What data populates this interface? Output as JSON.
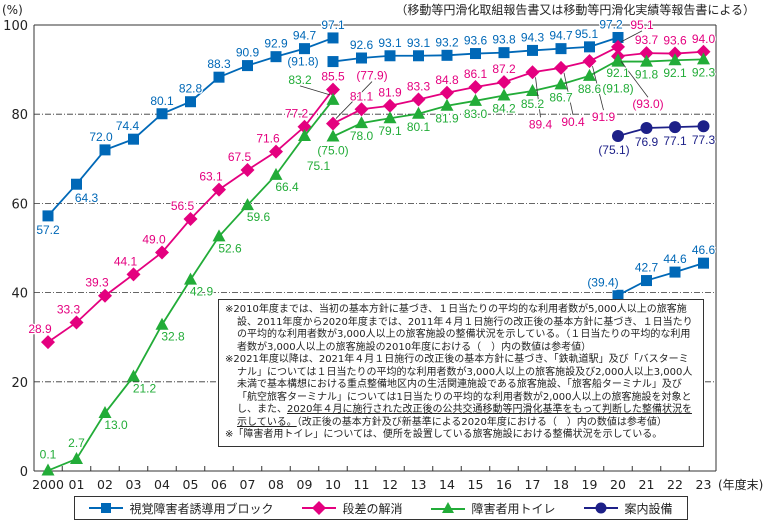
{
  "chart_data": {
    "type": "line",
    "title": "",
    "source_note": "（移動等円滑化取組報告書又は移動等円滑化実績等報告書による）",
    "ylabel": "(%)",
    "xlabel": "(年度末)",
    "ylim": [
      0,
      100
    ],
    "yticks": [
      "0",
      "20",
      "40",
      "60",
      "80",
      "100"
    ],
    "xticks": [
      "2000",
      "01",
      "02",
      "03",
      "04",
      "05",
      "06",
      "07",
      "08",
      "09",
      "10",
      "11",
      "12",
      "13",
      "14",
      "15",
      "16",
      "17",
      "18",
      "19",
      "20",
      "21",
      "22",
      "23"
    ],
    "grid": "dash-dot horizontal at 20, 40, 60, 80",
    "legend_position": "bottom",
    "series": [
      {
        "name": "視覚障害者誘導用ブロック",
        "color": "#0068b7",
        "marker": "square",
        "segments": [
          {
            "x": [
              0,
              1,
              2,
              3,
              4,
              5,
              6,
              7,
              8,
              9,
              10
            ],
            "values": [
              57.2,
              64.3,
              72.0,
              74.4,
              80.1,
              82.8,
              88.3,
              90.9,
              92.9,
              94.7,
              97.1
            ],
            "labels": [
              "57.2",
              "64.3",
              "72.0",
              "74.4",
              "80.1",
              "82.8",
              "88.3",
              "90.9",
              "92.9",
              "94.7",
              "97.1"
            ]
          },
          {
            "x": [
              10,
              11,
              12,
              13,
              14,
              15,
              16,
              17,
              18,
              19,
              20
            ],
            "values": [
              91.8,
              92.6,
              93.1,
              93.1,
              93.2,
              93.6,
              93.8,
              94.3,
              94.7,
              95.1,
              97.2
            ],
            "labels": [
              "(91.8)",
              "92.6",
              "93.1",
              "93.1",
              "93.2",
              "93.6",
              "93.8",
              "94.3",
              "94.7",
              "95.1",
              "97.2"
            ]
          },
          {
            "x": [
              20,
              21,
              22,
              23
            ],
            "values": [
              39.4,
              42.7,
              44.6,
              46.6
            ],
            "labels": [
              "(39.4)",
              "42.7",
              "44.6",
              "46.6"
            ]
          }
        ]
      },
      {
        "name": "段差の解消",
        "color": "#e4007f",
        "marker": "diamond",
        "segments": [
          {
            "x": [
              0,
              1,
              2,
              3,
              4,
              5,
              6,
              7,
              8,
              9,
              10
            ],
            "values": [
              28.9,
              33.3,
              39.3,
              44.1,
              49.0,
              56.5,
              63.1,
              67.5,
              71.6,
              77.2,
              85.5
            ],
            "labels": [
              "28.9",
              "33.3",
              "39.3",
              "44.1",
              "49.0",
              "56.5",
              "63.1",
              "67.5",
              "71.6",
              "77.2",
              "85.5"
            ]
          },
          {
            "x": [
              10,
              11,
              12,
              13,
              14,
              15,
              16,
              17,
              18,
              19,
              20
            ],
            "values": [
              77.9,
              81.1,
              81.9,
              83.3,
              84.8,
              86.1,
              87.2,
              89.4,
              90.4,
              91.9,
              95.1
            ],
            "labels": [
              "(77.9)",
              "81.1",
              "81.9",
              "83.3",
              "84.8",
              "86.1",
              "87.2",
              "89.4",
              "90.4",
              "91.9",
              "95.1"
            ]
          },
          {
            "x": [
              20,
              21,
              22,
              23
            ],
            "values": [
              93.0,
              93.7,
              93.6,
              94.0
            ],
            "labels": [
              "(93.0)",
              "93.7",
              "93.6",
              "94.0"
            ]
          }
        ]
      },
      {
        "name": "障害者用トイレ",
        "color": "#22ac38",
        "marker": "triangle",
        "segments": [
          {
            "x": [
              0,
              1,
              2,
              3,
              4,
              5,
              6,
              7,
              8,
              9,
              10
            ],
            "values": [
              0.1,
              2.7,
              13.0,
              21.2,
              32.8,
              42.9,
              52.6,
              59.6,
              66.4,
              75.1,
              83.2
            ],
            "labels": [
              "0.1",
              "2.7",
              "13.0",
              "21.2",
              "32.8",
              "42.9",
              "52.6",
              "59.6",
              "66.4",
              "75.1",
              "83.2"
            ]
          },
          {
            "x": [
              10,
              11,
              12,
              13,
              14,
              15,
              16,
              17,
              18,
              19,
              20
            ],
            "values": [
              75.0,
              78.0,
              79.1,
              80.1,
              81.9,
              83.0,
              84.2,
              85.2,
              86.7,
              88.6,
              92.1
            ],
            "labels": [
              "(75.0)",
              "78.0",
              "79.1",
              "80.1",
              "81.9",
              "83.0",
              "84.2",
              "85.2",
              "86.7",
              "88.6",
              "92.1"
            ]
          },
          {
            "x": [
              20,
              21,
              22,
              23
            ],
            "values": [
              91.8,
              91.8,
              92.1,
              92.3
            ],
            "labels": [
              "(91.8)",
              "91.8",
              "92.1",
              "92.3"
            ]
          }
        ]
      },
      {
        "name": "案内設備",
        "color": "#1d2088",
        "marker": "circle",
        "segments": [
          {
            "x": [
              20,
              21,
              22,
              23
            ],
            "values": [
              75.1,
              76.9,
              77.1,
              77.3
            ],
            "labels": [
              "(75.1)",
              "76.9",
              "77.1",
              "77.3"
            ]
          }
        ]
      }
    ],
    "notes": {
      "n1": "※2010年度までは、当初の基本方針に基づき、１日当たりの平均的な利用者数が5,000人以上の旅客施設、2011年度から2020年度までは、2011年４月１日施行の改正後の基本方針に基づき、１日当たりの平均的な利用者数が3,000人以上の旅客施設の整備状況を示している。（１日当たりの平均的な利用者数が3,000人以上の旅客施設の2010年度における（　）内の数値は参考値）",
      "n2a": "※2021年度以降は、2021年４月１日施行の改正後の基本方針に基づき、「鉄軌道駅」及び「バスターミナル」については１日当たりの平均的な利用者数が3,000人以上の旅客施設及び2,000人以上3,000人未満で基本構想における重点整備地区内の生活関連施設である旅客施設、「旅客船ターミナル」及び「航空旅客ターミナル」については1日当たりの平均的な利用者数が2,000人以上の旅客施設を対象とし、また、",
      "n2u": "2020年４月に施行された改正後の公共交通移動等円滑化基準をもって判断した整備状況を示している。",
      "n2b": "（改正後の基本方針及び新基準による2020年度における（　）内の数値は参考値）",
      "n3": "※「障害者用トイレ」については、便所を設置している旅客施設における整備状況を示している。"
    }
  }
}
